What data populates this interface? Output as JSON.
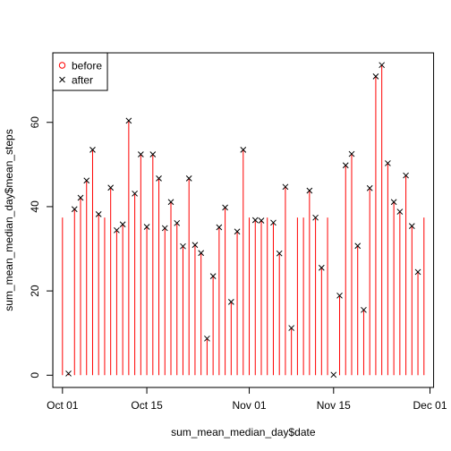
{
  "chart_data": {
    "type": "line",
    "xlabel": "sum_mean_median_day$date",
    "ylabel": "sum_mean_median_day$mean_steps",
    "x_start": "2012-10-01",
    "xlim_days": [
      -1.6,
      61.6
    ],
    "ylim": [
      -2.9,
      76.5
    ],
    "x_ticks": [
      {
        "day": 0,
        "label": "Oct 01"
      },
      {
        "day": 14,
        "label": "Oct 15"
      },
      {
        "day": 31,
        "label": "Nov 01"
      },
      {
        "day": 45,
        "label": "Nov 15"
      },
      {
        "day": 61,
        "label": "Dec 01"
      }
    ],
    "y_ticks": [
      0,
      20,
      40,
      60
    ],
    "legend": {
      "position": "top-left",
      "entries": [
        {
          "label": "before",
          "symbol": "circle",
          "color": "#FF0000"
        },
        {
          "label": "after",
          "symbol": "cross",
          "color": "#000000"
        }
      ]
    },
    "series": [
      {
        "name": "before",
        "style": "histogram-lines",
        "color": "#FF0000",
        "values": [
          37.4,
          0.4,
          39.4,
          42.1,
          46.2,
          53.5,
          38.2,
          37.4,
          44.5,
          34.4,
          35.8,
          60.4,
          43.1,
          52.4,
          35.2,
          52.4,
          46.7,
          34.9,
          41.1,
          36.1,
          30.6,
          46.7,
          30.9,
          29.0,
          8.7,
          23.5,
          35.1,
          39.8,
          17.4,
          34.1,
          53.5,
          37.4,
          36.8,
          36.7,
          37.4,
          36.2,
          28.9,
          44.7,
          11.2,
          37.4,
          37.4,
          43.8,
          37.4,
          25.5,
          37.4,
          0.1,
          18.9,
          49.8,
          52.5,
          30.7,
          15.5,
          44.4,
          70.9,
          73.6,
          50.3,
          41.1,
          38.8,
          47.4,
          35.4,
          24.5,
          37.4
        ]
      },
      {
        "name": "after",
        "style": "points-cross",
        "color": "#000000",
        "values": [
          null,
          0.4,
          39.4,
          42.1,
          46.2,
          53.5,
          38.2,
          null,
          44.5,
          34.4,
          35.8,
          60.4,
          43.1,
          52.4,
          35.2,
          52.4,
          46.7,
          34.9,
          41.1,
          36.1,
          30.6,
          46.7,
          30.9,
          29.0,
          8.7,
          23.5,
          35.1,
          39.8,
          17.4,
          34.1,
          53.5,
          null,
          36.8,
          36.7,
          null,
          36.2,
          28.9,
          44.7,
          11.2,
          null,
          null,
          43.8,
          37.4,
          25.5,
          null,
          0.1,
          18.9,
          49.8,
          52.5,
          30.7,
          15.5,
          44.4,
          70.9,
          73.6,
          50.3,
          41.1,
          38.8,
          47.4,
          35.4,
          24.5,
          null
        ]
      }
    ]
  }
}
